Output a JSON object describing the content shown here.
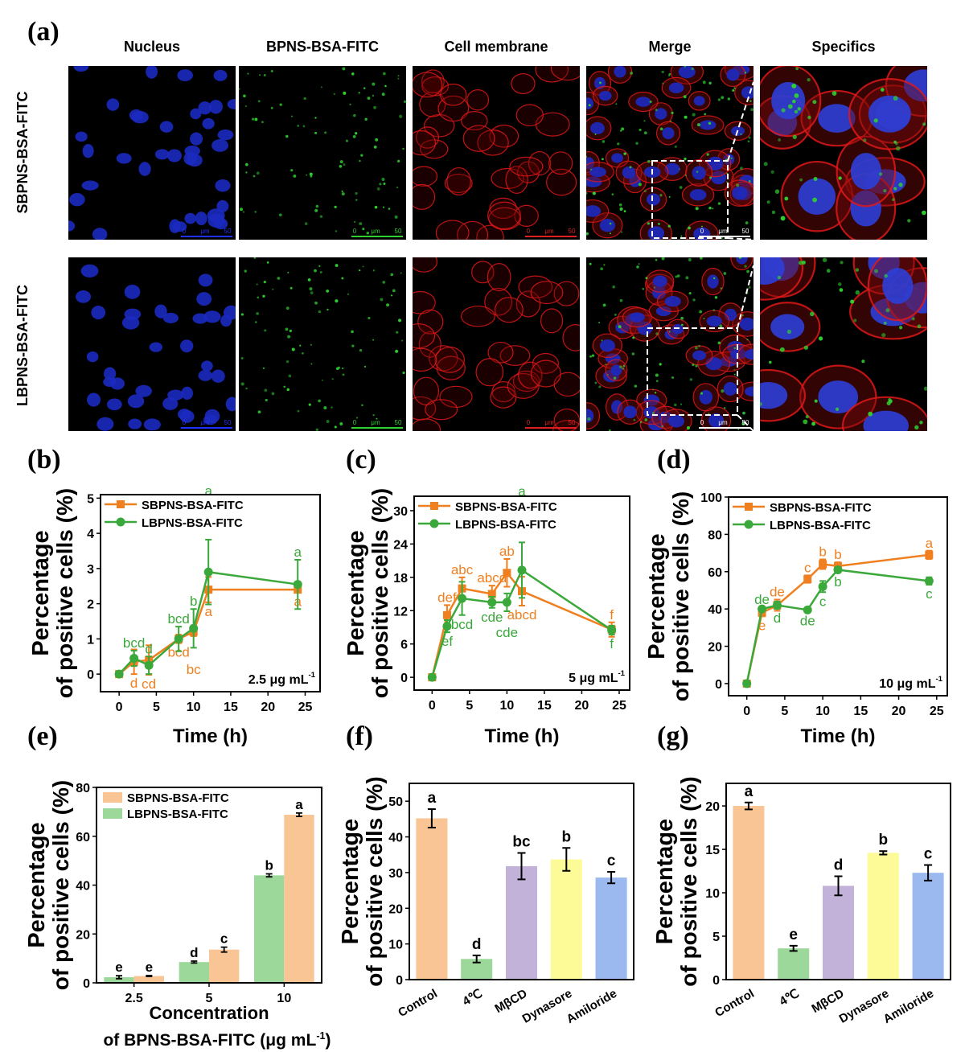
{
  "panel_labels": [
    "(a)",
    "(b)",
    "(c)",
    "(d)",
    "(e)",
    "(f)",
    "(g)"
  ],
  "panel_a": {
    "columns": [
      "Nucleus",
      "BPNS-BSA-FITC",
      "Cell membrane",
      "Merge",
      "Specifics"
    ],
    "rows": [
      "SBPNS-BSA-FITC",
      "LBPNS-BSA-FITC"
    ],
    "scale_bar": [
      "0",
      "μm",
      "50"
    ],
    "channel_colors": {
      "nucleus": "#1a2cff",
      "fitc": "#2fd12f",
      "membrane": "#e01818"
    }
  },
  "colors": {
    "SBPNS": "#f07f1f",
    "LBPNS": "#3aa83a"
  },
  "chart_data": [
    {
      "id": "b",
      "type": "line",
      "xlabel": "Time (h)",
      "ylabel": [
        "Percentage",
        "of positive cells (%)"
      ],
      "annotation": {
        "text": "2.5 μg mL",
        "sup": "-1"
      },
      "xlim": [
        -2.5,
        27
      ],
      "ylim": [
        -0.5,
        5.1
      ],
      "xticks": [
        0,
        5,
        10,
        15,
        20,
        25
      ],
      "yticks": [
        0,
        1,
        2,
        3,
        4,
        5
      ],
      "legend": "top-left",
      "grid": false,
      "x": [
        0,
        2,
        4,
        8,
        10,
        12,
        24
      ],
      "series": [
        {
          "name": "SBPNS-BSA-FITC",
          "marker": "square",
          "values": [
            0,
            0.35,
            0.4,
            1.0,
            1.2,
            2.4,
            2.4
          ],
          "errors": [
            0,
            0.35,
            0.42,
            0.12,
            0.12,
            0.36,
            0.08
          ],
          "letters": [
            "",
            "d",
            "cd",
            "bcd",
            "bc",
            "a",
            "a"
          ],
          "letter_pos": [
            "",
            "below",
            "below",
            "below",
            "below",
            "below",
            "below"
          ]
        },
        {
          "name": "LBPNS-BSA-FITC",
          "marker": "circle",
          "values": [
            0,
            0.45,
            0.25,
            1.0,
            1.3,
            2.9,
            2.55
          ],
          "errors": [
            0,
            0.22,
            0.25,
            0.35,
            0.55,
            0.92,
            0.7
          ],
          "letters": [
            "",
            "bcd",
            "d",
            "bcd",
            "b",
            "a",
            "a"
          ],
          "letter_pos": [
            "",
            "above",
            "above",
            "above",
            "above",
            "above",
            "above"
          ]
        }
      ]
    },
    {
      "id": "c",
      "type": "line",
      "xlabel": "Time (h)",
      "ylabel": [
        "Percentage",
        "of positive cells (%)"
      ],
      "annotation": {
        "text": "5 μg mL",
        "sup": "-1"
      },
      "xlim": [
        -2.4,
        26.4
      ],
      "ylim": [
        -2.3,
        32.6
      ],
      "xticks": [
        0,
        5,
        10,
        15,
        20,
        25
      ],
      "yticks": [
        0,
        6,
        12,
        18,
        24,
        30
      ],
      "legend": "top-left",
      "grid": false,
      "x": [
        0,
        2,
        4,
        8,
        10,
        12,
        24
      ],
      "series": [
        {
          "name": "SBPNS-BSA-FITC",
          "marker": "square",
          "values": [
            0,
            11.2,
            16,
            15,
            18.8,
            15.5,
            8.6
          ],
          "errors": [
            0,
            1.8,
            2,
            1.5,
            2.5,
            2.6,
            1.3
          ],
          "letters": [
            "",
            "def",
            "abc",
            "abcd",
            "ab",
            "abcd",
            "f"
          ],
          "letter_pos": [
            "",
            "above",
            "above",
            "above",
            "above",
            "below",
            "above"
          ]
        },
        {
          "name": "LBPNS-BSA-FITC",
          "marker": "circle",
          "values": [
            0,
            9.2,
            14.2,
            13.5,
            13.5,
            19.3,
            8.5
          ],
          "errors": [
            0,
            1.1,
            3,
            1,
            1.6,
            5,
            0.8
          ],
          "letters": [
            "",
            "ef",
            "bcd",
            "cde",
            "cde",
            "a",
            "f"
          ],
          "letter_pos": [
            "",
            "below",
            "below",
            "below",
            "below",
            "above",
            "below"
          ]
        }
      ]
    },
    {
      "id": "d",
      "type": "line",
      "xlabel": "Time (h)",
      "ylabel": [
        "Percentage",
        "of positive cells (%)"
      ],
      "annotation": {
        "text": "10 μg mL",
        "sup": "-1"
      },
      "xlim": [
        -2.4,
        26.4
      ],
      "ylim": [
        -6.5,
        100
      ],
      "xticks": [
        0,
        5,
        10,
        15,
        20,
        25
      ],
      "yticks": [
        0,
        20,
        40,
        60,
        80,
        100
      ],
      "legend": "top-left",
      "grid": false,
      "x": [
        0,
        2,
        4,
        8,
        10,
        12,
        24
      ],
      "series": [
        {
          "name": "SBPNS-BSA-FITC",
          "marker": "square",
          "values": [
            0,
            38,
            42,
            56,
            64,
            63,
            69
          ],
          "errors": [
            0,
            2,
            3,
            2,
            2.6,
            2,
            2.2
          ],
          "letters": [
            "",
            "e",
            "de",
            "c",
            "b",
            "b",
            "a"
          ],
          "letter_pos": [
            "",
            "below",
            "above",
            "above",
            "above",
            "above",
            "above"
          ]
        },
        {
          "name": "LBPNS-BSA-FITC",
          "marker": "circle",
          "values": [
            0,
            40,
            42,
            39.5,
            52,
            61,
            55
          ],
          "errors": [
            0,
            1,
            2,
            1,
            3,
            1.5,
            2
          ],
          "letters": [
            "",
            "de",
            "d",
            "de",
            "c",
            "b",
            "c"
          ],
          "letter_pos": [
            "",
            "above",
            "below",
            "below",
            "below",
            "below",
            "below"
          ]
        }
      ]
    },
    {
      "id": "e",
      "type": "bar",
      "xlabel": [
        "Concentration",
        {
          "text": "of BPNS-BSA-FITC (μg mL",
          "sup": "-1",
          "tail": ")"
        }
      ],
      "ylabel": [
        "Percentage",
        "of positive cells (%)"
      ],
      "categories": [
        "2.5",
        "5",
        "10"
      ],
      "ylim": [
        0,
        80
      ],
      "yticks": [
        0,
        20,
        40,
        60,
        80
      ],
      "legend": "top-left",
      "grid": false,
      "series": [
        {
          "name": "LBPNS-BSA-FITC",
          "color": "#9dd89b",
          "values": [
            2.3,
            8.5,
            44
          ],
          "errors": [
            0.6,
            0.4,
            0.6
          ],
          "letters": [
            "e",
            "d",
            "b"
          ]
        },
        {
          "name": "SBPNS-BSA-FITC",
          "color": "#f9c594",
          "values": [
            2.8,
            13.6,
            68.8
          ],
          "errors": [
            0.2,
            1,
            0.7
          ],
          "letters": [
            "e",
            "c",
            "a"
          ]
        }
      ],
      "legend_order": [
        1,
        0
      ]
    },
    {
      "id": "f",
      "type": "bar",
      "ylabel": [
        "Percentage",
        "of positive cells (%)"
      ],
      "categories": [
        "Control",
        "4℃",
        "MβCD",
        "Dynasore",
        "Amiloride"
      ],
      "ylim": [
        0,
        55
      ],
      "yticks": [
        0,
        10,
        20,
        30,
        40,
        50
      ],
      "grid": false,
      "colors": [
        "#f9c594",
        "#9dd89b",
        "#c2b1d8",
        "#fdfb97",
        "#9bb8ef"
      ],
      "values": [
        45.2,
        5.8,
        31.8,
        33.7,
        28.6
      ],
      "errors": [
        2.6,
        1,
        3.7,
        3.2,
        1.6
      ],
      "letters": [
        "a",
        "d",
        "bc",
        "b",
        "c"
      ]
    },
    {
      "id": "g",
      "type": "bar",
      "ylabel": [
        "Percentage",
        "of positive cells (%)"
      ],
      "categories": [
        "Control",
        "4℃",
        "MβCD",
        "Dynasore",
        "Amiloride"
      ],
      "ylim": [
        0,
        22.6
      ],
      "yticks": [
        0,
        5,
        10,
        15,
        20
      ],
      "grid": false,
      "colors": [
        "#f9c594",
        "#9dd89b",
        "#c2b1d8",
        "#fdfb97",
        "#9bb8ef"
      ],
      "values": [
        20,
        3.6,
        10.8,
        14.6,
        12.3
      ],
      "errors": [
        0.4,
        0.3,
        1.1,
        0.2,
        0.9
      ],
      "letters": [
        "a",
        "e",
        "d",
        "b",
        "c"
      ]
    }
  ]
}
